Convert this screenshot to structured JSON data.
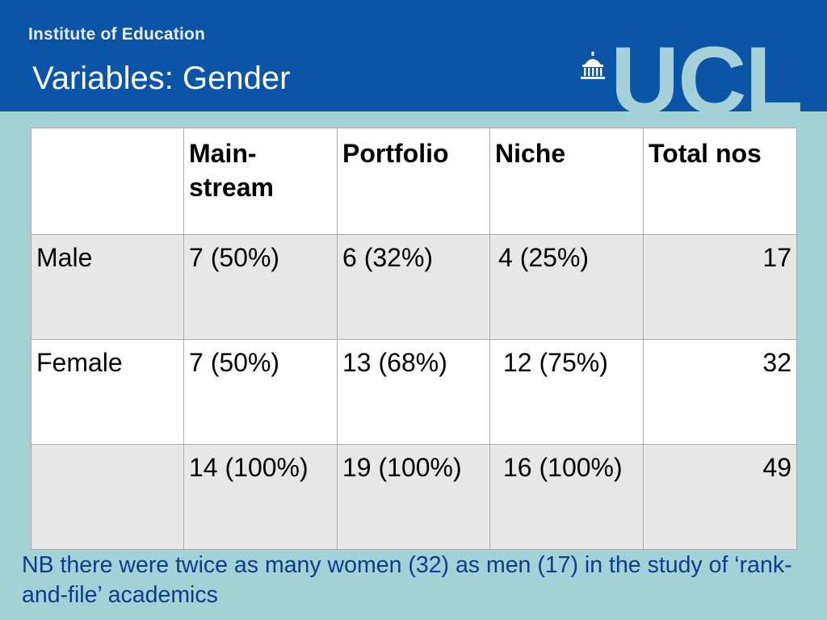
{
  "header": {
    "institute": "Institute of Education",
    "title": "Variables: Gender",
    "logo_text": "UCL"
  },
  "table": {
    "headers": [
      "",
      "Main-stream",
      "Portfolio",
      "Niche",
      "Total nos"
    ],
    "header_main_line1": "Main-",
    "header_main_line2": "stream",
    "rows": [
      {
        "label": "Male",
        "mainstream": "7 (50%)",
        "portfolio": "6 (32%)",
        "niche": "4 (25%)",
        "total": "17"
      },
      {
        "label": "Female",
        "mainstream": "7 (50%)",
        "portfolio": "13 (68%)",
        "niche": "12 (75%)",
        "total": "32"
      },
      {
        "label": "",
        "mainstream": "14 (100%)",
        "portfolio": "19 (100%)",
        "niche": "16 (100%)",
        "total": "49"
      }
    ]
  },
  "note": "NB there were twice as many women (32) as men (17) in the study of ‘rank-and-file’ academics",
  "colors": {
    "header_bg": "#0b55a8",
    "page_bg": "#a3d2d6",
    "logo": "#a6d1d8",
    "note": "#0e3c8c"
  }
}
